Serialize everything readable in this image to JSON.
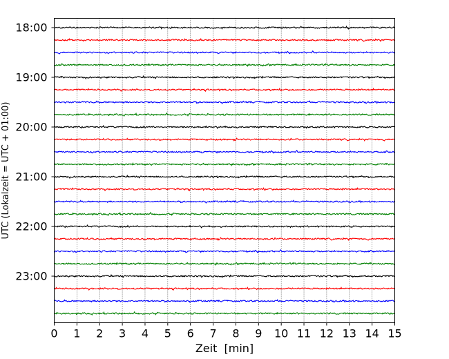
{
  "chart_data": {
    "type": "line",
    "title": "",
    "xlabel": "Zeit  [min]",
    "ylabel": "UTC (Lokalzeit = UTC + 01:00)",
    "xlim": [
      0,
      15
    ],
    "x_ticks": [
      "0",
      "1",
      "2",
      "3",
      "4",
      "5",
      "6",
      "7",
      "8",
      "9",
      "10",
      "11",
      "12",
      "13",
      "14",
      "15"
    ],
    "y_ticks": [
      "18:00",
      "19:00",
      "20:00",
      "21:00",
      "22:00",
      "23:00"
    ],
    "grid": "vertical dotted at each minute",
    "trace_interval_minutes": 15,
    "trace_colors": [
      "#000000",
      "#ff0000",
      "#0000ff",
      "#008000"
    ],
    "traces": [
      {
        "start": "18:00",
        "color": "#000000"
      },
      {
        "start": "18:15",
        "color": "#ff0000"
      },
      {
        "start": "18:30",
        "color": "#0000ff"
      },
      {
        "start": "18:45",
        "color": "#008000"
      },
      {
        "start": "19:00",
        "color": "#000000"
      },
      {
        "start": "19:15",
        "color": "#ff0000"
      },
      {
        "start": "19:30",
        "color": "#0000ff"
      },
      {
        "start": "19:45",
        "color": "#008000"
      },
      {
        "start": "20:00",
        "color": "#000000"
      },
      {
        "start": "20:15",
        "color": "#ff0000"
      },
      {
        "start": "20:30",
        "color": "#0000ff"
      },
      {
        "start": "20:45",
        "color": "#008000"
      },
      {
        "start": "21:00",
        "color": "#000000"
      },
      {
        "start": "21:15",
        "color": "#ff0000"
      },
      {
        "start": "21:30",
        "color": "#0000ff"
      },
      {
        "start": "21:45",
        "color": "#008000"
      },
      {
        "start": "22:00",
        "color": "#000000"
      },
      {
        "start": "22:15",
        "color": "#ff0000"
      },
      {
        "start": "22:30",
        "color": "#0000ff"
      },
      {
        "start": "22:45",
        "color": "#008000"
      },
      {
        "start": "23:00",
        "color": "#000000"
      },
      {
        "start": "23:15",
        "color": "#ff0000"
      },
      {
        "start": "23:30",
        "color": "#0000ff"
      },
      {
        "start": "23:45",
        "color": "#008000"
      }
    ]
  }
}
